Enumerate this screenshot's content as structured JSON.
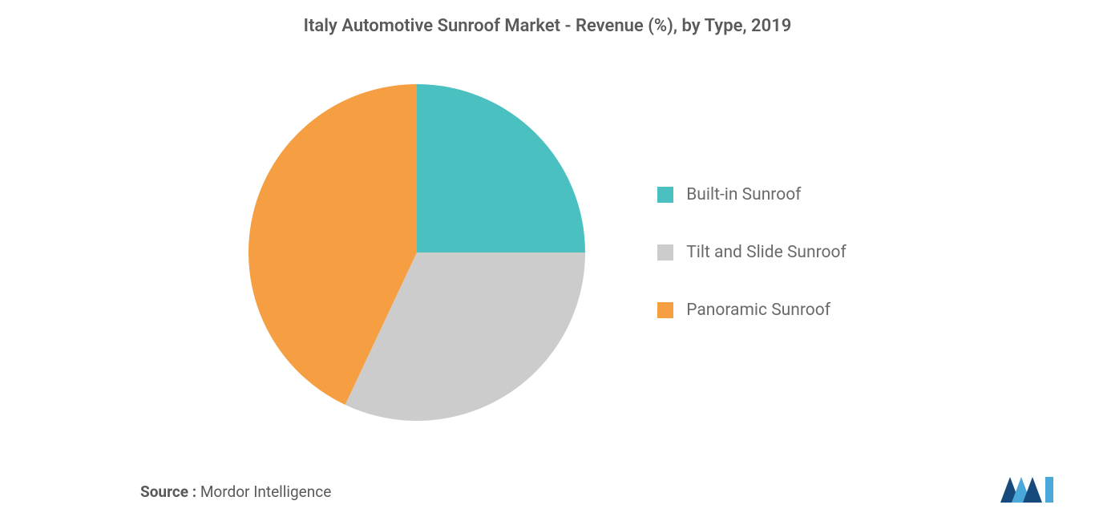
{
  "chart": {
    "type": "pie",
    "title": "Italy Automotive Sunroof Market - Revenue (%), by Type, 2019",
    "title_fontsize": 22,
    "title_color": "#5a5a5a",
    "background_color": "#ffffff",
    "slices": [
      {
        "label": "Built-in Sunroof",
        "value": 25,
        "color": "#4bc0c0"
      },
      {
        "label": "Tilt and Slide Sunroof",
        "value": 32,
        "color": "#cccccc"
      },
      {
        "label": "Panoramic Sunroof",
        "value": 43,
        "color": "#f59e42"
      }
    ],
    "legend_fontsize": 21,
    "legend_color": "#6a6a6a",
    "pie_radius": 210
  },
  "source": {
    "label": "Source :",
    "value": "Mordor Intelligence"
  },
  "brand": {
    "color1": "#174a7c",
    "color2": "#4aa8d8"
  }
}
